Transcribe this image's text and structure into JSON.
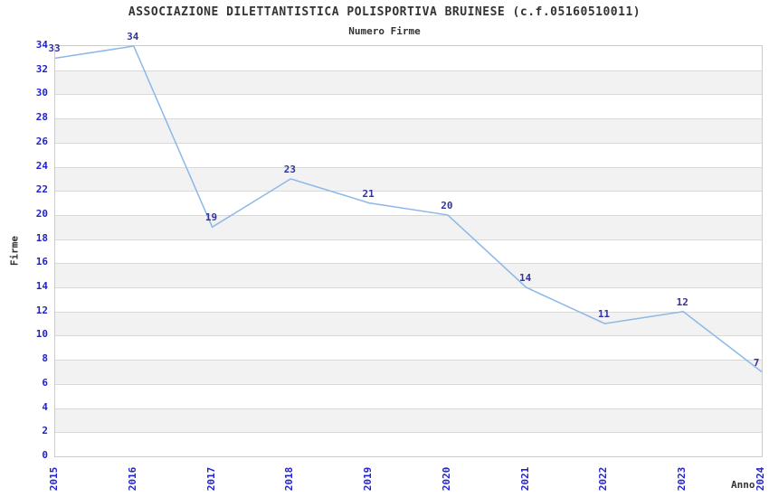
{
  "page": {
    "background": "#ffffff"
  },
  "chart_data": {
    "type": "line",
    "title": "ASSOCIAZIONE DILETTANTISTICA POLISPORTIVA BRUINESE (c.f.05160510011)",
    "subtitle": "Numero Firme",
    "xlabel": "Anno",
    "ylabel": "Firme",
    "categories": [
      "2015",
      "2016",
      "2017",
      "2018",
      "2019",
      "2020",
      "2021",
      "2022",
      "2023",
      "2024"
    ],
    "values": [
      33,
      34,
      19,
      23,
      21,
      20,
      14,
      11,
      12,
      7
    ],
    "ylim": [
      0,
      34
    ],
    "ytick_step": 2,
    "legend": "none",
    "grid": "horizontal-bands",
    "colors": {
      "line": "#8ab8e8",
      "tick_label": "#2222cc",
      "data_label": "#333399",
      "title": "#333333",
      "band_light": "#ffffff",
      "band_dark": "#f2f2f2",
      "gridline": "#d9d9d9",
      "plot_border": "#cccccc"
    }
  }
}
